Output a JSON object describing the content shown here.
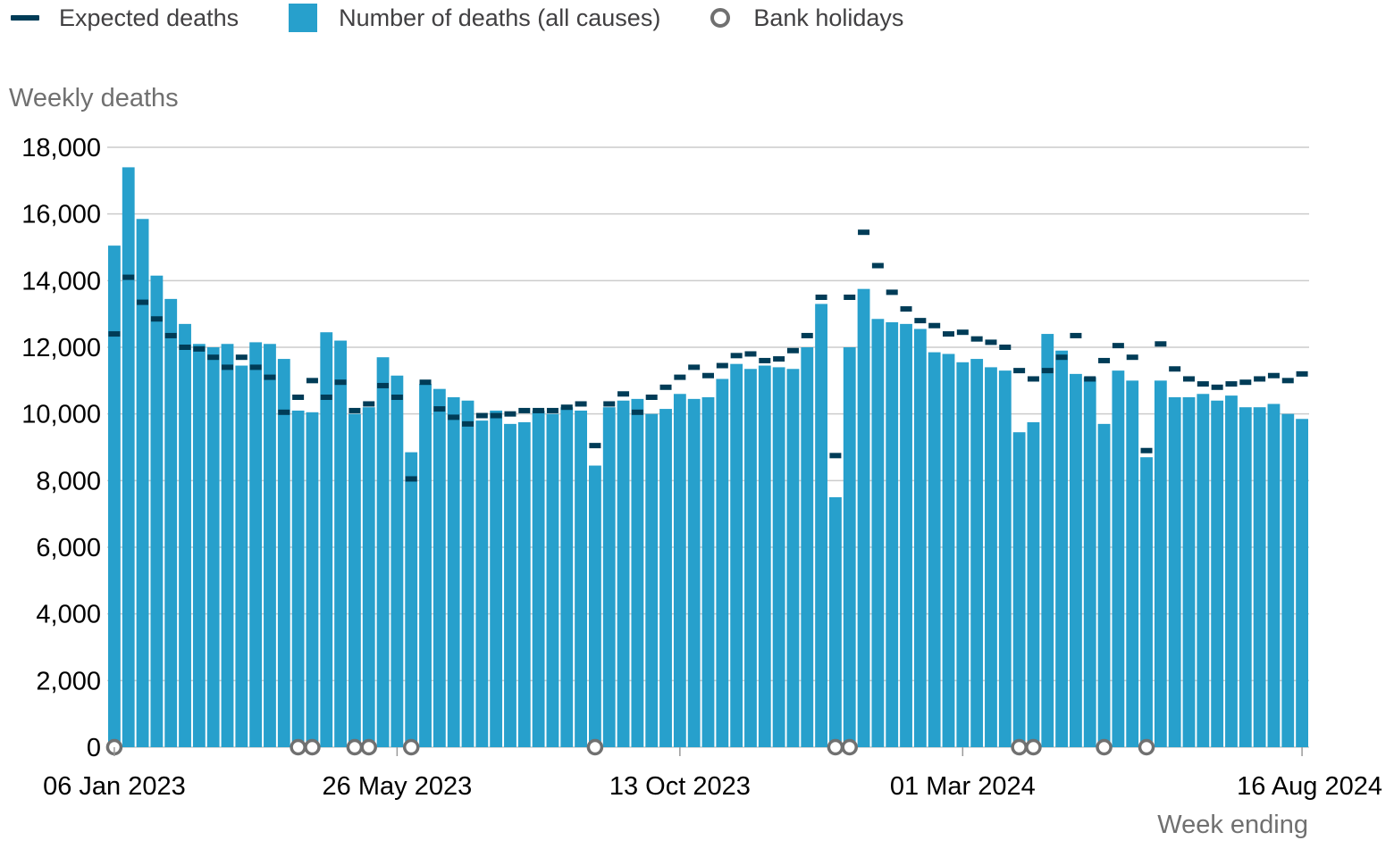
{
  "legend": {
    "expected_label": "Expected deaths",
    "deaths_label": "Number of deaths (all causes)",
    "holidays_label": "Bank holidays"
  },
  "colors": {
    "bar": "#27a0cc",
    "expected": "#003c57",
    "holiday": "#707070",
    "grid": "#cccccc",
    "text": "#414042",
    "label": "#707070"
  },
  "chart_data": {
    "type": "bar",
    "ylabel": "Weekly deaths",
    "xlabel": "Week ending",
    "ylim": [
      0,
      18000
    ],
    "y_ticks": [
      0,
      2000,
      4000,
      6000,
      8000,
      10000,
      12000,
      14000,
      16000,
      18000
    ],
    "y_tick_labels": [
      "0",
      "2,000",
      "4,000",
      "6,000",
      "8,000",
      "10,000",
      "12,000",
      "14,000",
      "16,000",
      "18,000"
    ],
    "x_tick_labels": [
      {
        "index": 0,
        "label": "06 Jan 2023"
      },
      {
        "index": 20,
        "label": "26 May 2023"
      },
      {
        "index": 40,
        "label": "13 Oct 2023"
      },
      {
        "index": 60,
        "label": "01 Mar 2024"
      },
      {
        "index": 84,
        "label": "16 Aug 2024"
      }
    ],
    "grid": true,
    "legend_position": "top",
    "series": [
      {
        "name": "Number of deaths (all causes)",
        "values": [
          15050,
          17400,
          15850,
          14150,
          13450,
          12700,
          12100,
          12000,
          12100,
          11450,
          12150,
          12100,
          11650,
          10100,
          10050,
          12450,
          12200,
          10000,
          10200,
          11700,
          11150,
          8850,
          10900,
          10750,
          10500,
          10400,
          9800,
          10100,
          9700,
          9750,
          10100,
          10000,
          10200,
          10100,
          8450,
          10200,
          10400,
          10450,
          10000,
          10150,
          10600,
          10450,
          10500,
          11050,
          11500,
          11350,
          11450,
          11400,
          11350,
          12000,
          13300,
          7500,
          12000,
          13750,
          12850,
          12750,
          12700,
          12550,
          11850,
          11800,
          11550,
          11650,
          11400,
          11300,
          9450,
          9750,
          12400,
          11900,
          11200,
          11100,
          9700,
          11300,
          11000,
          8700,
          11000,
          10500,
          10500,
          10600,
          10400,
          10550,
          10200,
          10200,
          10300,
          10000,
          9850
        ]
      },
      {
        "name": "Expected deaths",
        "values": [
          12400,
          14100,
          13350,
          12850,
          12350,
          12000,
          11950,
          11700,
          11400,
          11700,
          11400,
          11100,
          10050,
          10500,
          11000,
          10500,
          10950,
          10100,
          10300,
          10850,
          10500,
          8050,
          10950,
          10150,
          9900,
          9700,
          9950,
          9950,
          10000,
          10100,
          10100,
          10100,
          10200,
          10300,
          9050,
          10300,
          10600,
          10050,
          10500,
          10800,
          11100,
          11400,
          11150,
          11450,
          11750,
          11800,
          11600,
          11650,
          11900,
          12350,
          13500,
          8750,
          13500,
          15450,
          14450,
          13650,
          13150,
          12800,
          12650,
          12400,
          12450,
          12250,
          12150,
          12000,
          11300,
          11050,
          11300,
          11700,
          12350,
          11050,
          11600,
          12050,
          11700,
          8900,
          12100,
          11350,
          11050,
          10900,
          10800,
          10900,
          10950,
          11050,
          11150,
          11000,
          11200
        ]
      }
    ],
    "bank_holiday_week_indices": [
      0,
      13,
      14,
      17,
      18,
      21,
      34,
      51,
      52,
      64,
      65,
      70,
      73
    ]
  }
}
